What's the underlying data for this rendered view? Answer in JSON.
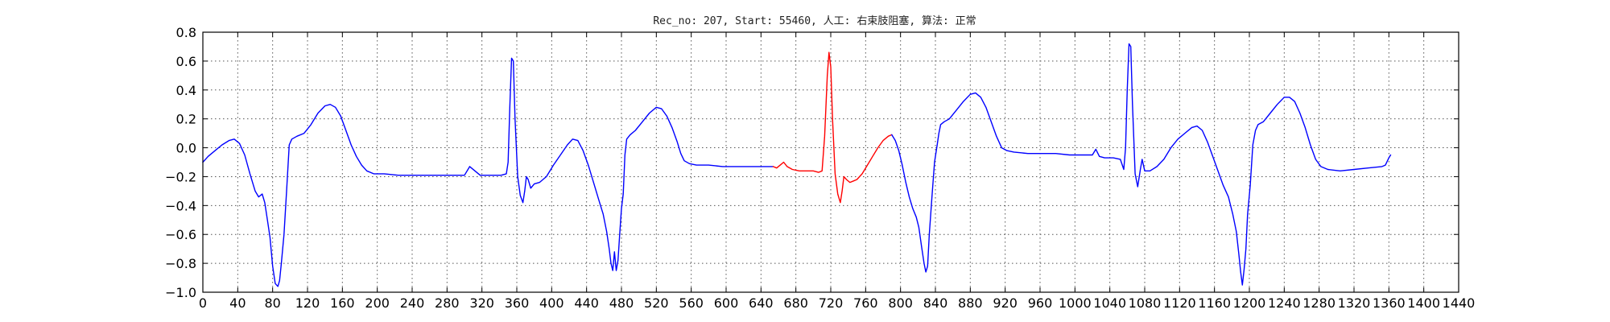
{
  "chart_data": {
    "type": "line",
    "title": "Rec_no: 207, Start: 55460, 人工: 右束肢阻塞, 算法: 正常",
    "xlabel": "",
    "ylabel": "",
    "xlim": [
      0,
      1440
    ],
    "ylim": [
      -1.0,
      0.8
    ],
    "grid": true,
    "x_ticks": [
      0,
      40,
      80,
      120,
      160,
      200,
      240,
      280,
      320,
      360,
      400,
      440,
      480,
      520,
      560,
      600,
      640,
      680,
      720,
      760,
      800,
      840,
      880,
      920,
      960,
      1000,
      1040,
      1080,
      1120,
      1160,
      1200,
      1240,
      1280,
      1320,
      1360,
      1400,
      1440
    ],
    "x_tick_labels": [
      "0",
      "40",
      "80",
      "120",
      "160",
      "200",
      "240",
      "280",
      "320",
      "360",
      "400",
      "440",
      "480",
      "520",
      "560",
      "600",
      "640",
      "680",
      "720",
      "760",
      "800",
      "840",
      "880",
      "920",
      "960",
      "1000",
      "1040",
      "1080",
      "1120",
      "1160",
      "1200",
      "1240",
      "1280",
      "1320",
      "1360",
      "1400",
      "1440"
    ],
    "y_ticks": [
      0.8,
      0.6,
      0.4,
      0.2,
      0.0,
      -0.2,
      -0.4,
      -0.6,
      -0.8,
      -1.0
    ],
    "y_tick_labels": [
      "0.8",
      "0.6",
      "0.4",
      "0.2",
      "0.0",
      "−0.2",
      "−0.4",
      "−0.6",
      "−0.8",
      "−1.0"
    ],
    "series": [
      {
        "color": "#0000ff",
        "points": [
          [
            0,
            -0.1
          ],
          [
            6,
            -0.06
          ],
          [
            14,
            -0.02
          ],
          [
            22,
            0.02
          ],
          [
            30,
            0.05
          ],
          [
            36,
            0.06
          ],
          [
            42,
            0.03
          ],
          [
            48,
            -0.05
          ],
          [
            54,
            -0.18
          ],
          [
            60,
            -0.3
          ],
          [
            64,
            -0.34
          ],
          [
            68,
            -0.32
          ],
          [
            71,
            -0.38
          ],
          [
            74,
            -0.5
          ],
          [
            77,
            -0.62
          ],
          [
            80,
            -0.82
          ],
          [
            83,
            -0.94
          ],
          [
            86,
            -0.96
          ],
          [
            88,
            -0.92
          ],
          [
            90,
            -0.8
          ],
          [
            93,
            -0.6
          ],
          [
            96,
            -0.3
          ],
          [
            99,
            0.02
          ],
          [
            102,
            0.06
          ],
          [
            108,
            0.08
          ],
          [
            116,
            0.1
          ],
          [
            124,
            0.16
          ],
          [
            132,
            0.24
          ],
          [
            140,
            0.29
          ],
          [
            146,
            0.3
          ],
          [
            152,
            0.28
          ],
          [
            158,
            0.22
          ],
          [
            164,
            0.12
          ],
          [
            170,
            0.02
          ],
          [
            176,
            -0.06
          ],
          [
            182,
            -0.12
          ],
          [
            188,
            -0.16
          ],
          [
            196,
            -0.18
          ],
          [
            208,
            -0.18
          ],
          [
            224,
            -0.19
          ],
          [
            240,
            -0.19
          ],
          [
            256,
            -0.19
          ],
          [
            272,
            -0.19
          ],
          [
            288,
            -0.19
          ],
          [
            300,
            -0.19
          ],
          [
            306,
            -0.13
          ],
          [
            312,
            -0.16
          ],
          [
            318,
            -0.19
          ],
          [
            330,
            -0.19
          ],
          [
            342,
            -0.19
          ],
          [
            348,
            -0.18
          ],
          [
            350,
            -0.1
          ],
          [
            352,
            0.28
          ],
          [
            354,
            0.62
          ],
          [
            356,
            0.6
          ],
          [
            358,
            0.2
          ],
          [
            361,
            -0.2
          ],
          [
            364,
            -0.33
          ],
          [
            367,
            -0.38
          ],
          [
            369,
            -0.3
          ],
          [
            371,
            -0.2
          ],
          [
            373,
            -0.22
          ],
          [
            376,
            -0.28
          ],
          [
            380,
            -0.25
          ],
          [
            386,
            -0.24
          ],
          [
            394,
            -0.2
          ],
          [
            402,
            -0.12
          ],
          [
            410,
            -0.05
          ],
          [
            418,
            0.02
          ],
          [
            424,
            0.06
          ],
          [
            430,
            0.05
          ],
          [
            436,
            -0.02
          ],
          [
            442,
            -0.12
          ],
          [
            448,
            -0.24
          ],
          [
            454,
            -0.36
          ],
          [
            459,
            -0.46
          ],
          [
            463,
            -0.58
          ],
          [
            466,
            -0.7
          ],
          [
            468,
            -0.8
          ],
          [
            470,
            -0.85
          ],
          [
            472,
            -0.72
          ],
          [
            474,
            -0.85
          ],
          [
            476,
            -0.78
          ],
          [
            478,
            -0.6
          ],
          [
            480,
            -0.42
          ],
          [
            482,
            -0.32
          ],
          [
            484,
            -0.05
          ],
          [
            486,
            0.06
          ],
          [
            490,
            0.09
          ],
          [
            496,
            0.12
          ],
          [
            504,
            0.18
          ],
          [
            512,
            0.24
          ],
          [
            520,
            0.28
          ],
          [
            526,
            0.27
          ],
          [
            532,
            0.22
          ],
          [
            538,
            0.14
          ],
          [
            544,
            0.04
          ],
          [
            548,
            -0.04
          ],
          [
            552,
            -0.09
          ],
          [
            558,
            -0.11
          ],
          [
            566,
            -0.12
          ],
          [
            580,
            -0.12
          ],
          [
            596,
            -0.13
          ],
          [
            612,
            -0.13
          ],
          [
            628,
            -0.13
          ],
          [
            644,
            -0.13
          ],
          [
            654,
            -0.13
          ]
        ]
      },
      {
        "color": "#ff0000",
        "points": [
          [
            654,
            -0.13
          ],
          [
            658,
            -0.14
          ],
          [
            662,
            -0.12
          ],
          [
            666,
            -0.1
          ],
          [
            670,
            -0.13
          ],
          [
            676,
            -0.15
          ],
          [
            684,
            -0.16
          ],
          [
            692,
            -0.16
          ],
          [
            700,
            -0.16
          ],
          [
            706,
            -0.17
          ],
          [
            710,
            -0.16
          ],
          [
            713,
            0.08
          ],
          [
            716,
            0.5
          ],
          [
            718,
            0.66
          ],
          [
            720,
            0.56
          ],
          [
            722,
            0.2
          ],
          [
            725,
            -0.18
          ],
          [
            728,
            -0.32
          ],
          [
            731,
            -0.38
          ],
          [
            733,
            -0.3
          ],
          [
            735,
            -0.2
          ],
          [
            738,
            -0.22
          ],
          [
            742,
            -0.24
          ],
          [
            746,
            -0.23
          ],
          [
            750,
            -0.22
          ],
          [
            756,
            -0.18
          ],
          [
            762,
            -0.12
          ],
          [
            768,
            -0.06
          ],
          [
            774,
            0.0
          ],
          [
            780,
            0.05
          ],
          [
            786,
            0.08
          ],
          [
            790,
            0.09
          ]
        ]
      },
      {
        "color": "#0000ff",
        "points": [
          [
            790,
            0.09
          ],
          [
            794,
            0.05
          ],
          [
            798,
            -0.02
          ],
          [
            802,
            -0.12
          ],
          [
            806,
            -0.24
          ],
          [
            810,
            -0.34
          ],
          [
            814,
            -0.42
          ],
          [
            818,
            -0.48
          ],
          [
            821,
            -0.55
          ],
          [
            824,
            -0.68
          ],
          [
            827,
            -0.8
          ],
          [
            829,
            -0.86
          ],
          [
            831,
            -0.82
          ],
          [
            833,
            -0.6
          ],
          [
            836,
            -0.34
          ],
          [
            839,
            -0.1
          ],
          [
            842,
            0.02
          ],
          [
            844,
            0.1
          ],
          [
            846,
            0.16
          ],
          [
            850,
            0.18
          ],
          [
            856,
            0.2
          ],
          [
            864,
            0.26
          ],
          [
            872,
            0.32
          ],
          [
            880,
            0.37
          ],
          [
            886,
            0.38
          ],
          [
            892,
            0.35
          ],
          [
            898,
            0.28
          ],
          [
            904,
            0.18
          ],
          [
            910,
            0.08
          ],
          [
            916,
            0.0
          ],
          [
            922,
            -0.02
          ],
          [
            930,
            -0.03
          ],
          [
            946,
            -0.04
          ],
          [
            962,
            -0.04
          ],
          [
            978,
            -0.04
          ],
          [
            994,
            -0.05
          ],
          [
            1010,
            -0.05
          ],
          [
            1020,
            -0.05
          ],
          [
            1024,
            -0.01
          ],
          [
            1028,
            -0.06
          ],
          [
            1034,
            -0.07
          ],
          [
            1044,
            -0.07
          ],
          [
            1052,
            -0.08
          ],
          [
            1056,
            -0.15
          ],
          [
            1058,
            0.0
          ],
          [
            1060,
            0.4
          ],
          [
            1062,
            0.72
          ],
          [
            1064,
            0.7
          ],
          [
            1066,
            0.3
          ],
          [
            1069,
            -0.18
          ],
          [
            1072,
            -0.27
          ],
          [
            1075,
            -0.15
          ],
          [
            1077,
            -0.08
          ],
          [
            1080,
            -0.16
          ],
          [
            1086,
            -0.16
          ],
          [
            1094,
            -0.13
          ],
          [
            1102,
            -0.08
          ],
          [
            1110,
            0.0
          ],
          [
            1118,
            0.06
          ],
          [
            1126,
            0.1
          ],
          [
            1134,
            0.14
          ],
          [
            1140,
            0.15
          ],
          [
            1146,
            0.12
          ],
          [
            1152,
            0.04
          ],
          [
            1158,
            -0.06
          ],
          [
            1164,
            -0.16
          ],
          [
            1170,
            -0.26
          ],
          [
            1176,
            -0.34
          ],
          [
            1181,
            -0.46
          ],
          [
            1185,
            -0.58
          ],
          [
            1188,
            -0.74
          ],
          [
            1190,
            -0.86
          ],
          [
            1192,
            -0.95
          ],
          [
            1194,
            -0.84
          ],
          [
            1196,
            -0.7
          ],
          [
            1198,
            -0.46
          ],
          [
            1201,
            -0.26
          ],
          [
            1204,
            0.02
          ],
          [
            1207,
            0.12
          ],
          [
            1210,
            0.16
          ],
          [
            1216,
            0.18
          ],
          [
            1224,
            0.24
          ],
          [
            1232,
            0.3
          ],
          [
            1240,
            0.35
          ],
          [
            1246,
            0.35
          ],
          [
            1252,
            0.32
          ],
          [
            1258,
            0.24
          ],
          [
            1264,
            0.14
          ],
          [
            1270,
            0.02
          ],
          [
            1276,
            -0.08
          ],
          [
            1282,
            -0.13
          ],
          [
            1290,
            -0.15
          ],
          [
            1304,
            -0.16
          ],
          [
            1320,
            -0.15
          ],
          [
            1336,
            -0.14
          ],
          [
            1352,
            -0.13
          ],
          [
            1356,
            -0.12
          ],
          [
            1360,
            -0.07
          ],
          [
            1362,
            -0.05
          ]
        ]
      }
    ]
  }
}
